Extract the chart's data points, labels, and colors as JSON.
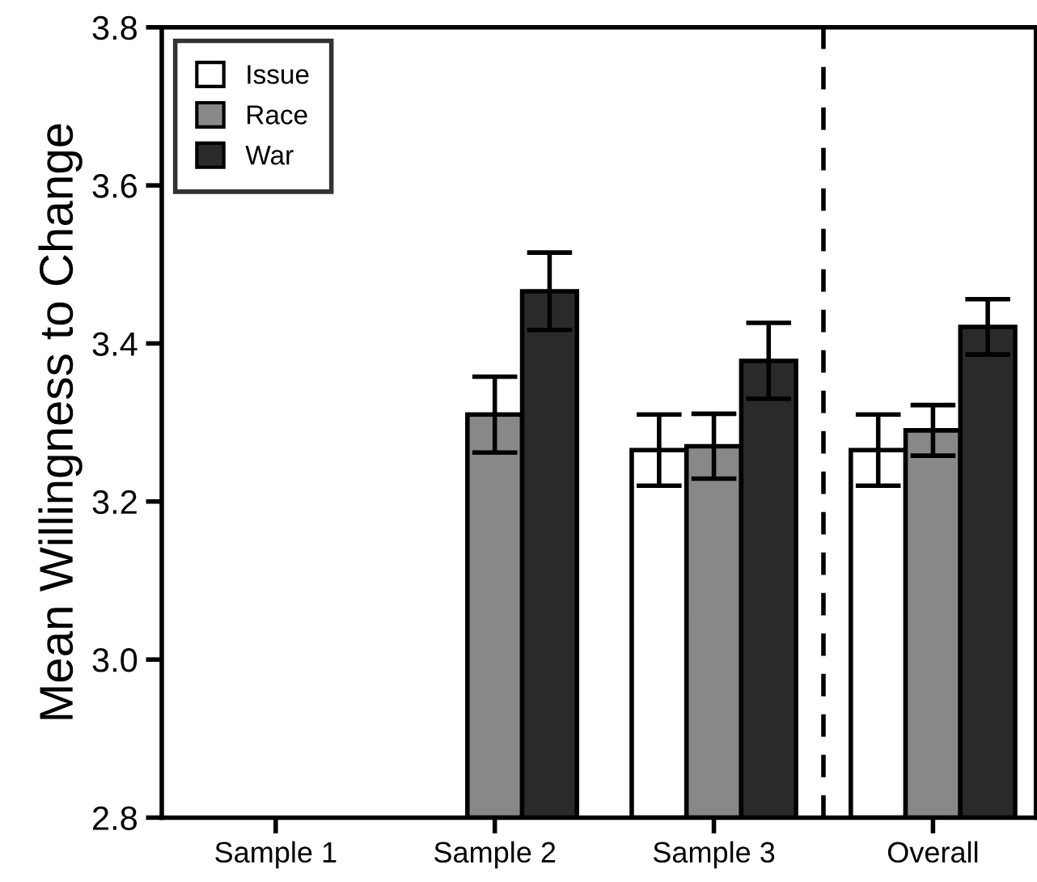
{
  "chart_data": {
    "type": "bar",
    "ylabel": "Mean Willingness to Change",
    "categories": [
      "Sample 1",
      "Sample 2",
      "Sample 3",
      "Overall"
    ],
    "series": [
      {
        "name": "Issue",
        "color": "#ffffff",
        "values": [
          null,
          null,
          3.265,
          3.265
        ],
        "errors": [
          null,
          null,
          0.045,
          0.045
        ]
      },
      {
        "name": "Race",
        "color": "#888888",
        "values": [
          null,
          3.31,
          3.27,
          3.29
        ],
        "errors": [
          null,
          0.048,
          0.041,
          0.032
        ]
      },
      {
        "name": "War",
        "color": "#2a2a2a",
        "values": [
          null,
          3.466,
          3.378,
          3.421
        ],
        "errors": [
          null,
          0.049,
          0.048,
          0.035
        ]
      }
    ],
    "ylim": [
      2.8,
      3.8
    ],
    "yticks": [
      3.8,
      3.6,
      3.4,
      3.2,
      {
        "value": 3.0,
        "label": "3.0"
      },
      2.8
    ],
    "grid": false,
    "legend": "top left"
  }
}
